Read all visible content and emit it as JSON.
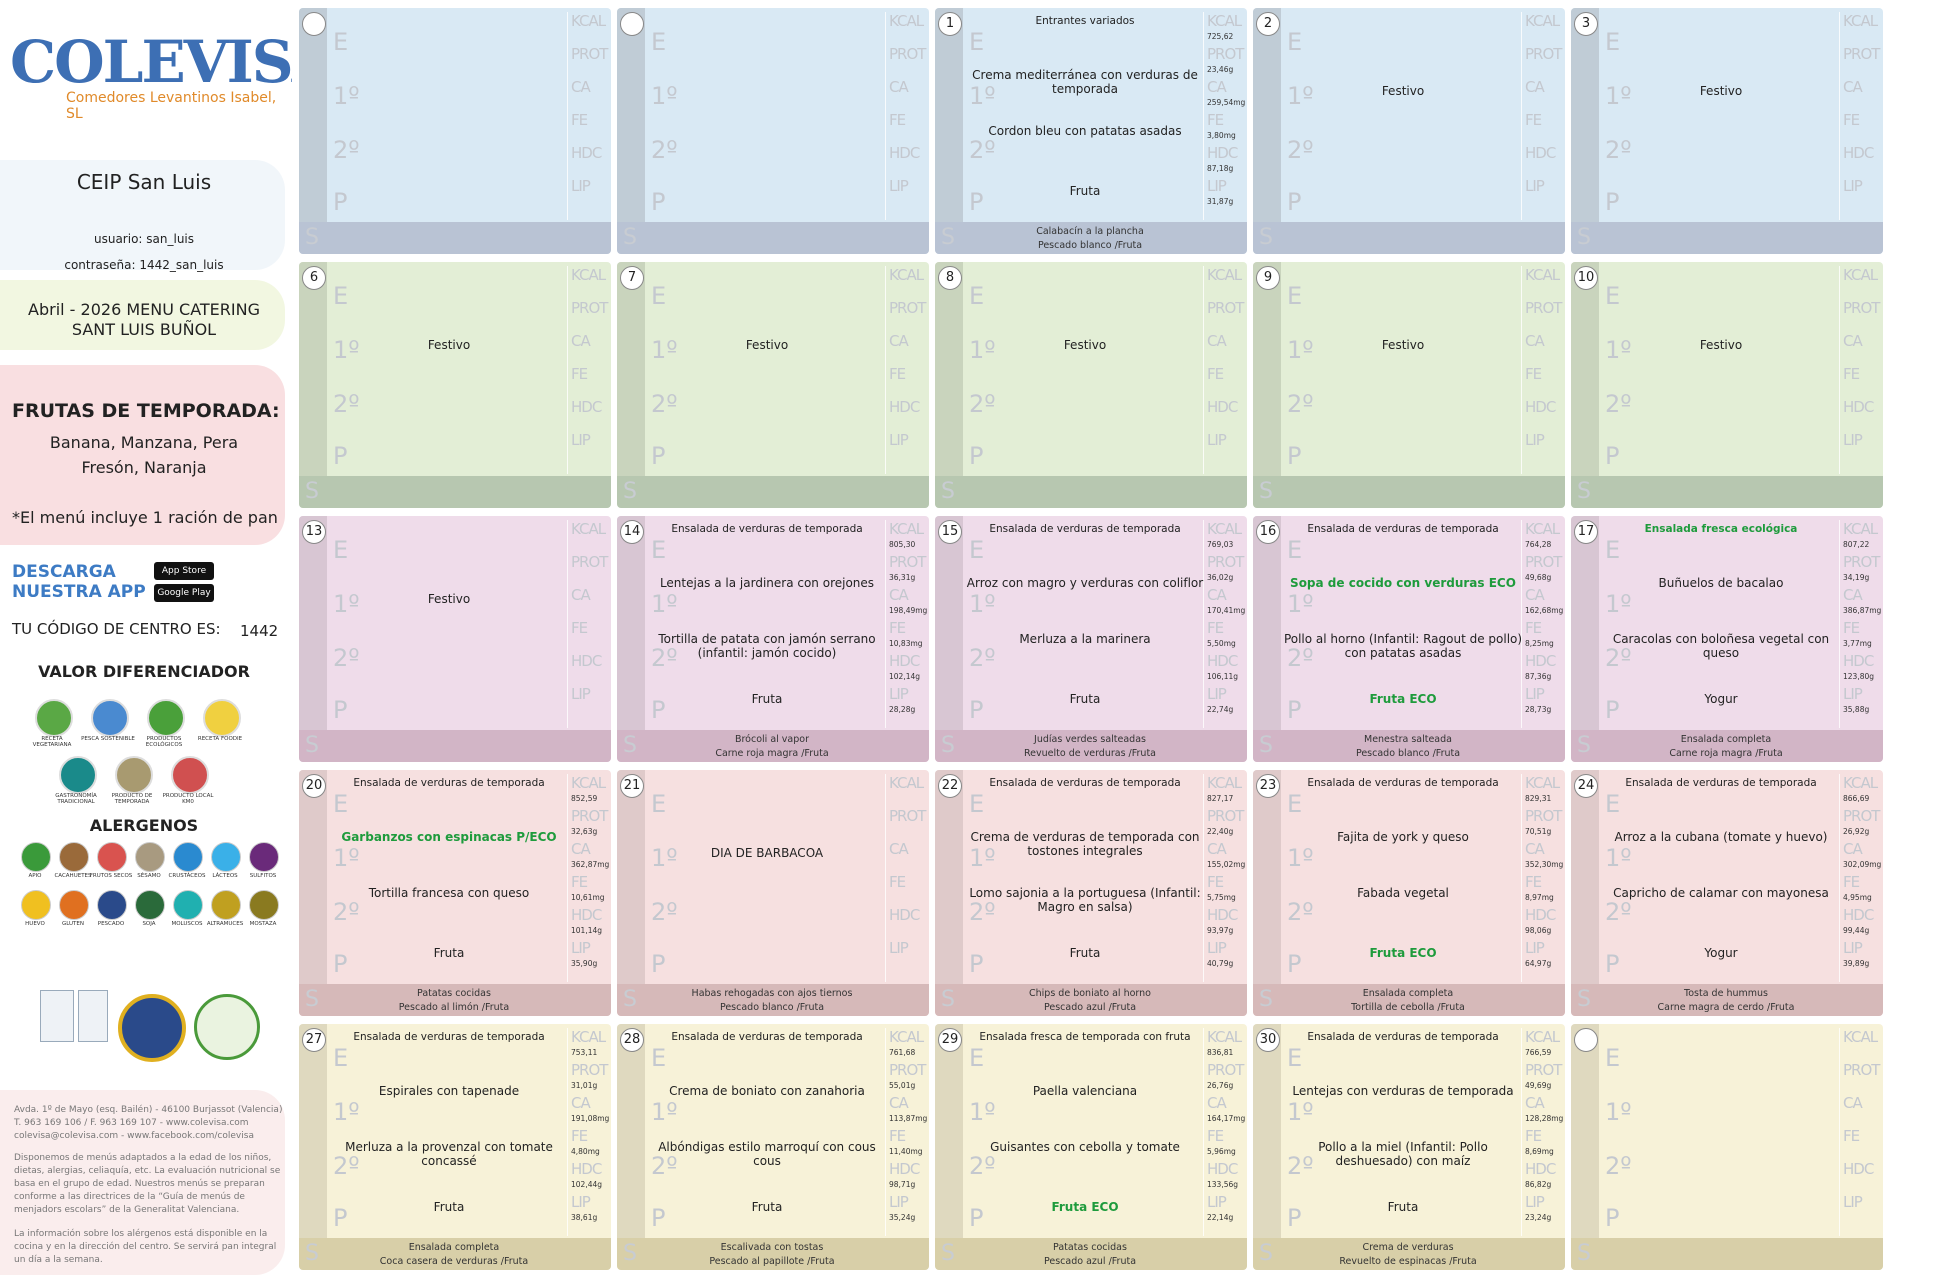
{
  "sidebar": {
    "brand": "COLEVISA",
    "brand_sub": "Comedores Levantinos Isabel, SL",
    "school": "CEIP San Luis",
    "user": "usuario: san_luis",
    "password": "contraseña: 1442_san_luis",
    "menu_title": "Abril - 2026 MENU CATERING SANT LUIS BUÑOL",
    "fruits_title": "FRUTAS DE TEMPORADA:",
    "fruits": [
      "Banana, Manzana, Pera",
      "Fresón, Naranja"
    ],
    "bread_note": "*El menú incluye 1 ración de pan",
    "app_title": [
      "DESCARGA",
      "NUESTRA APP"
    ],
    "stores": [
      "App Store",
      "Google Play"
    ],
    "code_label": "TU CÓDIGO DE CENTRO ES:",
    "code": "1442",
    "value_title": "VALOR DIFERENCIADOR",
    "value_items": [
      "RECETA VEGETARIANA",
      "PESCA SOSTENIBLE",
      "PRODUCTOS ECOLÓGICOS",
      "RECETA FOODIE",
      "GASTRONOMÍA TRADICIONAL",
      "PRODUCTO DE TEMPORADA",
      "PRODUCTO LOCAL KM0"
    ],
    "allergen_title": "ALERGENOS",
    "allergens": [
      "APIO",
      "CACAHUETES",
      "FRUTOS SECOS",
      "SÉSAMO",
      "CRUSTÁCEOS",
      "LÁCTEOS",
      "SULFITOS",
      "HUEVO",
      "GLUTEN",
      "PESCADO",
      "SOJA",
      "MOLUSCOS",
      "ALTRAMUCES",
      "MOSTAZA"
    ],
    "address": [
      "Avda. 1º de Mayo (esq. Bailén) - 46100 Burjassot (Valencia)",
      "T. 963 169 106 / F. 963 169 107 - www.colevisa.com",
      "colevisa@colevisa.com - www.facebook.com/colevisa"
    ],
    "note": "Disponemos de menús adaptados a la edad de los niños, dietas, alergias, celiaquía, etc. La evaluación nutricional se basa en el grupo de edad. Nuestros menús se preparan conforme a las directrices de la “Guía de menús de menjadors escolars” de la Generalitat Valenciana.",
    "allergen_note": "La información sobre los alérgenos está disponible en la cocina y en la dirección del centro. Se servirá pan integral un día a la semana."
  },
  "labels": {
    "e": "E",
    "first": "1º",
    "second": "2º",
    "dessert": "P",
    "supper": "S",
    "nutrition": [
      "KCAL",
      "PROT",
      "CA",
      "FE",
      "HDC",
      "LIP"
    ]
  },
  "eco_color": "#1e9b3c",
  "days": [
    null,
    null,
    {
      "day": 1,
      "e": "Entrantes variados",
      "first": "Crema mediterránea con verduras de temporada",
      "second": "Cordon bleu con patatas asadas",
      "dessert": "Fruta",
      "supper": [
        "Calabacín a la plancha",
        "Pescado blanco /Fruta"
      ],
      "nutrition": [
        "725,62",
        "23,46g",
        "259,54mg",
        "3,80mg",
        "87,18g",
        "31,87g"
      ]
    },
    {
      "day": 2,
      "first": "Festivo"
    },
    {
      "day": 3,
      "first": "Festivo"
    },
    {
      "day": 6,
      "first": "Festivo"
    },
    {
      "day": 7,
      "first": "Festivo"
    },
    {
      "day": 8,
      "first": "Festivo"
    },
    {
      "day": 9,
      "first": "Festivo"
    },
    {
      "day": 10,
      "first": "Festivo"
    },
    {
      "day": 13,
      "first": "Festivo"
    },
    {
      "day": 14,
      "e": "Ensalada de verduras de temporada",
      "first": "Lentejas a la jardinera con orejones",
      "second": "Tortilla de patata con jamón serrano (infantil: jamón cocido)",
      "dessert": "Fruta",
      "supper": [
        "Brócoli al vapor",
        "Carne roja magra /Fruta"
      ],
      "nutrition": [
        "805,30",
        "36,31g",
        "198,49mg",
        "10,83mg",
        "102,14g",
        "28,28g"
      ]
    },
    {
      "day": 15,
      "e": "Ensalada de verduras de temporada",
      "first": "Arroz con magro y verduras con coliflor",
      "second": "Merluza a la marinera",
      "dessert": "Fruta",
      "supper": [
        "Judías verdes salteadas",
        "Revuelto de verduras /Fruta"
      ],
      "nutrition": [
        "769,03",
        "36,02g",
        "170,41mg",
        "5,50mg",
        "106,11g",
        "22,74g"
      ]
    },
    {
      "day": 16,
      "e": "Ensalada de verduras de temporada",
      "first": "Sopa de cocido con verduras ECO",
      "second": "Pollo al horno (Infantil: Ragout de pollo) con patatas asadas",
      "dessert": "Fruta ECO",
      "supper": [
        "Menestra salteada",
        "Pescado blanco /Fruta"
      ],
      "nutrition": [
        "764,28",
        "49,68g",
        "162,68mg",
        "8,25mg",
        "87,36g",
        "28,73g"
      ],
      "eco": [
        "first",
        "dessert"
      ]
    },
    {
      "day": 17,
      "e": "Ensalada fresca ecológica",
      "first": "Buñuelos de bacalao",
      "second": "Caracolas con boloñesa vegetal con queso",
      "dessert": "Yogur",
      "supper": [
        "Ensalada completa",
        "Carne roja magra /Fruta"
      ],
      "nutrition": [
        "807,22",
        "34,19g",
        "386,87mg",
        "3,77mg",
        "123,80g",
        "35,88g"
      ],
      "eco": [
        "e"
      ]
    },
    {
      "day": 20,
      "e": "Ensalada de verduras de temporada",
      "first": "Garbanzos con espinacas P/ECO",
      "second": "Tortilla francesa con queso",
      "dessert": "Fruta",
      "supper": [
        "Patatas cocidas",
        "Pescado al limón /Fruta"
      ],
      "nutrition": [
        "852,59",
        "32,63g",
        "362,87mg",
        "10,61mg",
        "101,14g",
        "35,90g"
      ],
      "eco": [
        "first"
      ]
    },
    {
      "day": 21,
      "first": "DIA DE BARBACOA",
      "supper": [
        "Habas rehogadas con ajos tiernos",
        "Pescado blanco /Fruta"
      ]
    },
    {
      "day": 22,
      "e": "Ensalada de verduras de temporada",
      "first": "Crema de verduras de temporada  con tostones integrales",
      "second": "Lomo sajonia a la portuguesa (Infantil: Magro en salsa)",
      "dessert": "Fruta",
      "supper": [
        "Chips de boniato al horno",
        "Pescado azul /Fruta"
      ],
      "nutrition": [
        "827,17",
        "22,40g",
        "155,02mg",
        "5,75mg",
        "93,97g",
        "40,79g"
      ]
    },
    {
      "day": 23,
      "e": "Ensalada de verduras de temporada",
      "first": "Fajita de york y queso",
      "second": "Fabada vegetal",
      "dessert": "Fruta ECO",
      "supper": [
        "Ensalada completa",
        "Tortilla de cebolla /Fruta"
      ],
      "nutrition": [
        "829,31",
        "70,51g",
        "352,30mg",
        "8,97mg",
        "98,06g",
        "64,97g"
      ],
      "eco": [
        "dessert"
      ]
    },
    {
      "day": 24,
      "e": "Ensalada de verduras de temporada",
      "first": "Arroz a la cubana (tomate y huevo)",
      "second": "Capricho de calamar con mayonesa",
      "dessert": "Yogur",
      "supper": [
        "Tosta de hummus",
        "Carne magra de cerdo /Fruta"
      ],
      "nutrition": [
        "866,69",
        "26,92g",
        "302,09mg",
        "4,95mg",
        "99,44g",
        "39,89g"
      ]
    },
    {
      "day": 27,
      "e": "Ensalada de verduras de temporada",
      "first": "Espirales con tapenade",
      "second": "Merluza a la provenzal con tomate concassé",
      "dessert": "Fruta",
      "supper": [
        "Ensalada completa",
        "Coca casera de verduras /Fruta"
      ],
      "nutrition": [
        "753,11",
        "31,01g",
        "191,08mg",
        "4,80mg",
        "102,44g",
        "38,61g"
      ]
    },
    {
      "day": 28,
      "e": "Ensalada de verduras de temporada",
      "first": "Crema de boniato  con zanahoria",
      "second": "Albóndigas estilo marroquí con cous cous",
      "dessert": "Fruta",
      "supper": [
        "Escalivada con tostas",
        "Pescado al papillote /Fruta"
      ],
      "nutrition": [
        "761,68",
        "55,01g",
        "113,87mg",
        "11,40mg",
        "98,71g",
        "35,24g"
      ]
    },
    {
      "day": 29,
      "e": "Ensalada fresca de temporada con fruta",
      "first": "Paella valenciana",
      "second": "Guisantes con cebolla y tomate",
      "dessert": "Fruta ECO",
      "supper": [
        "Patatas cocidas",
        "Pescado azul /Fruta"
      ],
      "nutrition": [
        "836,81",
        "26,76g",
        "164,17mg",
        "5,96mg",
        "133,56g",
        "22,14g"
      ],
      "eco": [
        "dessert"
      ]
    },
    {
      "day": 30,
      "e": "Ensalada de verduras de temporada",
      "first": "Lentejas con verduras de temporada",
      "second": "Pollo a la miel (Infantil: Pollo deshuesado) con maíz",
      "dessert": "Fruta",
      "supper": [
        "Crema de verduras",
        "Revuelto de espinacas /Fruta"
      ],
      "nutrition": [
        "766,59",
        "49,69g",
        "128,28mg",
        "8,69mg",
        "86,82g",
        "23,24g"
      ]
    },
    null
  ]
}
